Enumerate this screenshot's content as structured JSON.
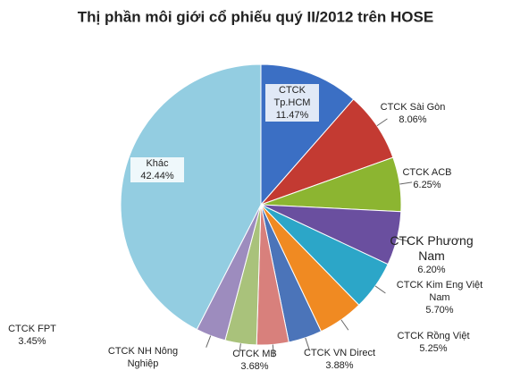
{
  "chart_data": {
    "type": "pie",
    "title": "Thị phần môi giới cổ phiếu quý II/2012 trên HOSE",
    "categories": [
      "CTCK Tp.HCM",
      "CTCK Sài Gòn",
      "CTCK ACB",
      "CTCK Phương Nam",
      "CTCK Kim Eng Việt Nam",
      "CTCK Rồng Việt",
      "CTCK VN Direct",
      "CTCK MB",
      "CTCK NH Nông Nghiệp",
      "CTCK FPT",
      "Khác"
    ],
    "values": [
      11.47,
      8.06,
      6.25,
      6.2,
      5.7,
      5.25,
      3.88,
      3.68,
      3.62,
      3.45,
      42.44
    ],
    "value_labels": [
      "11.47%",
      "8.06%",
      "6.25%",
      "6.20%",
      "5.70%",
      "5.25%",
      "3.88%",
      "3.68%",
      null,
      "3.45%",
      "42.44%"
    ],
    "colors": [
      "#3b6fc4",
      "#c33a32",
      "#8cb531",
      "#6a4f9f",
      "#2ca6c8",
      "#f08a22",
      "#4b74b9",
      "#d8807c",
      "#a9c27b",
      "#9d8cbe",
      "#93cde1"
    ]
  }
}
